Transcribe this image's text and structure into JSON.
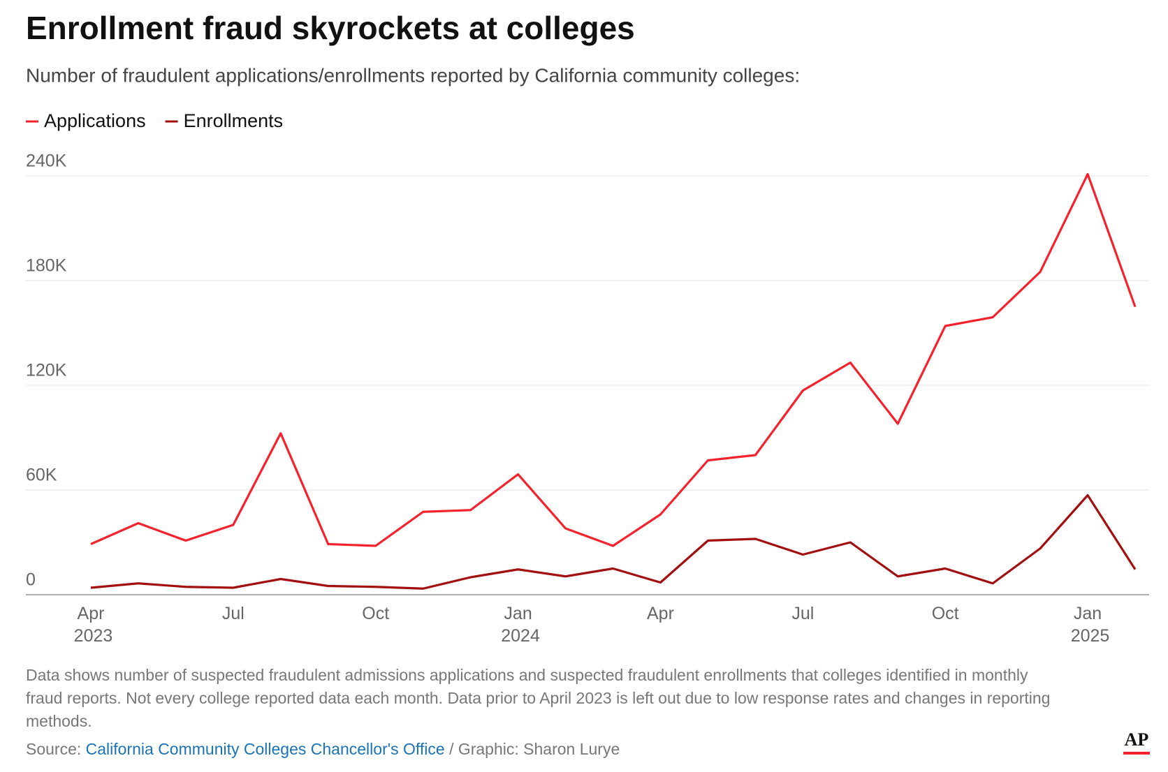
{
  "chart_data": {
    "type": "line",
    "title": "Enrollment fraud skyrockets at colleges",
    "subtitle": "Number of fraudulent applications/enrollments reported by California community colleges:",
    "categories": [
      "Apr 2023",
      null,
      null,
      "Jul",
      null,
      null,
      "Oct",
      null,
      null,
      "Jan 2024",
      null,
      null,
      "Apr",
      null,
      null,
      "Jul",
      null,
      null,
      "Oct",
      null,
      null,
      "Jan 2025",
      null
    ],
    "series": [
      {
        "name": "Applications",
        "color": "#f5222d",
        "values": [
          29000,
          41000,
          31000,
          40000,
          92500,
          29000,
          28000,
          47500,
          48500,
          69000,
          38000,
          28000,
          46000,
          77000,
          80000,
          117000,
          133000,
          98000,
          154000,
          159000,
          185000,
          241000,
          165000
        ]
      },
      {
        "name": "Enrollments",
        "color": "#a30f0f",
        "values": [
          4000,
          6500,
          4500,
          4000,
          9000,
          5000,
          4500,
          3500,
          10000,
          14500,
          10500,
          15000,
          7000,
          31000,
          32000,
          23000,
          30000,
          10500,
          15000,
          6500,
          26500,
          57000,
          14500
        ]
      }
    ],
    "ylim": [
      0,
      240000
    ],
    "yticks": [
      0,
      {
        "value": 60000,
        "label": "60K"
      },
      {
        "value": 120000,
        "label": "120K"
      },
      {
        "value": 180000,
        "label": "180K"
      },
      {
        "value": 240000,
        "label": "240K"
      }
    ],
    "grid": true,
    "note": "Data shows number of suspected fraudulent admissions applications and suspected fraudulent enrollments that colleges identified in monthly fraud reports. Not every college reported data each month. Data prior to April 2023 is left out due to low response rates and changes in reporting methods.",
    "source_label": "Source:",
    "source": "California Community Colleges Chancellor's Office",
    "credit": "/ Graphic: Sharon Lurye",
    "logo": "AP"
  }
}
